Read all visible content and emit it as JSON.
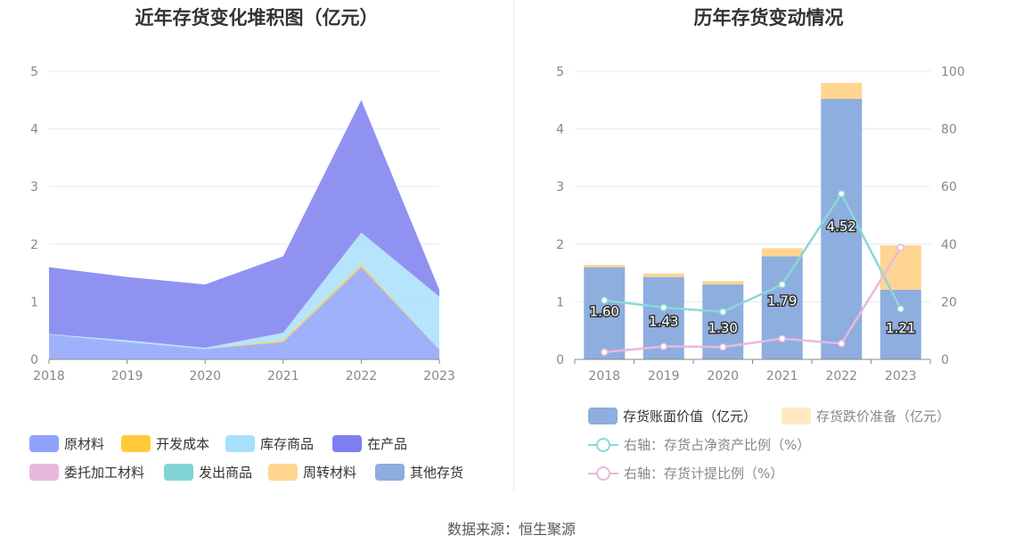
{
  "source": "数据来源：恒生聚源",
  "chart_data": [
    {
      "type": "area",
      "title": "近年存货变化堆积图（亿元）",
      "x": [
        "2018",
        "2019",
        "2020",
        "2021",
        "2022",
        "2023"
      ],
      "ylim": [
        0,
        5
      ],
      "yticks": [
        0,
        1,
        2,
        3,
        4,
        5
      ],
      "grid": true,
      "legend_position": "bottom",
      "stacked": true,
      "series": [
        {
          "name": "原材料",
          "color": "#8fa3fb",
          "values": [
            0.43,
            0.3,
            0.18,
            0.3,
            1.6,
            0.17
          ]
        },
        {
          "name": "开发成本",
          "color": "#ffc93a",
          "values": [
            0,
            0,
            0,
            0.03,
            0.04,
            0
          ]
        },
        {
          "name": "库存商品",
          "color": "#a8dffb",
          "values": [
            0.01,
            0.03,
            0.02,
            0.13,
            0.56,
            0.92
          ]
        },
        {
          "name": "在产品",
          "color": "#7d7ff0",
          "values": [
            1.16,
            1.1,
            1.1,
            1.33,
            2.3,
            0.12
          ]
        },
        {
          "name": "委托加工材料",
          "color": "#e8b9dc",
          "values": [
            0,
            0,
            0,
            0,
            0,
            0
          ]
        },
        {
          "name": "发出商品",
          "color": "#82d4d4",
          "values": [
            0,
            0,
            0,
            0,
            0,
            0
          ]
        },
        {
          "name": "周转材料",
          "color": "#ffd591",
          "values": [
            0,
            0,
            0,
            0,
            0,
            0
          ]
        },
        {
          "name": "其他存货",
          "color": "#8daede",
          "values": [
            0,
            0,
            0,
            0,
            0,
            0
          ]
        }
      ]
    },
    {
      "type": "bar",
      "title": "历年存货变动情况",
      "categories": [
        "2018",
        "2019",
        "2020",
        "2021",
        "2022",
        "2023"
      ],
      "ylim": [
        0,
        5
      ],
      "yticks": [
        0,
        1,
        2,
        3,
        4,
        5
      ],
      "y2lim": [
        0,
        100
      ],
      "y2ticks": [
        0,
        20,
        40,
        60,
        80,
        100
      ],
      "grid": true,
      "legend_position": "bottom",
      "stacked": true,
      "bar_series": [
        {
          "name": "存货账面价值（亿元）",
          "color": "#8daede",
          "values": [
            1.6,
            1.43,
            1.3,
            1.79,
            4.52,
            1.21
          ],
          "labels": [
            "1.60",
            "1.43",
            "1.30",
            "1.79",
            "4.52",
            "1.21"
          ]
        },
        {
          "name": "存货跌价准备（亿元）",
          "color": "#ffd591",
          "values": [
            0.04,
            0.06,
            0.06,
            0.14,
            0.28,
            0.77
          ]
        }
      ],
      "line_series": [
        {
          "name": "右轴：存货占净资产比例（%）",
          "color": "#8ad8d8",
          "values": [
            20.5,
            18.0,
            16.5,
            26.0,
            57.5,
            17.5
          ]
        },
        {
          "name": "右轴：存货计提比例（%）",
          "color": "#e8b9dc",
          "values": [
            2.5,
            4.5,
            4.3,
            7.2,
            5.5,
            38.8
          ]
        }
      ]
    }
  ]
}
